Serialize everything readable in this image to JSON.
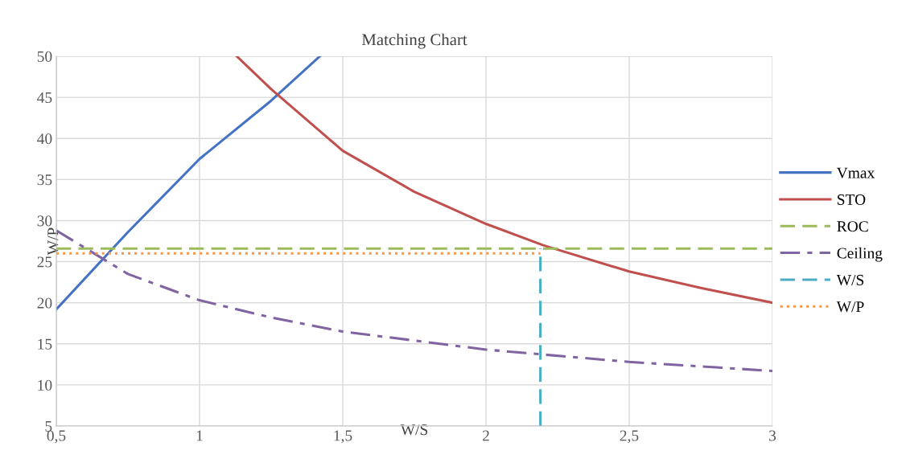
{
  "chart_data": {
    "type": "line",
    "title": "Matching Chart",
    "xlabel": "W/S",
    "ylabel": "W/P",
    "xlim": [
      0.5,
      3
    ],
    "ylim": [
      5,
      50
    ],
    "xticks": [
      {
        "value": 0.5,
        "label": "0,5"
      },
      1,
      {
        "value": 1.5,
        "label": "1,5"
      },
      2,
      {
        "value": 2.5,
        "label": "2,5"
      },
      3
    ],
    "yticks": [
      5,
      10,
      15,
      20,
      25,
      30,
      35,
      40,
      45,
      50
    ],
    "grid": true,
    "legend": "right",
    "series": [
      {
        "name": "Vmax",
        "color": "#4472c4",
        "line_style": "solid",
        "x": [
          0.5,
          0.75,
          1,
          1.25,
          1.42
        ],
        "values": [
          19.2,
          28.6,
          37.5,
          44.6,
          50
        ]
      },
      {
        "name": "STO",
        "color": "#c0504d",
        "line_style": "solid",
        "x": [
          1.13,
          1.25,
          1.5,
          1.75,
          2,
          2.2,
          2.5,
          2.75,
          3
        ],
        "values": [
          50,
          46,
          38.5,
          33.5,
          29.6,
          27,
          23.8,
          21.8,
          20
        ]
      },
      {
        "name": "ROC",
        "color": "#9bbb59",
        "line_style": "dashed",
        "x": [
          0.5,
          3
        ],
        "values": [
          26.6,
          26.6
        ]
      },
      {
        "name": "Ceiling",
        "color": "#8064a2",
        "line_style": "dashdot",
        "x": [
          0.5,
          0.75,
          1,
          1.25,
          1.5,
          2,
          2.2,
          2.5,
          3
        ],
        "values": [
          28.8,
          23.5,
          20.3,
          18.2,
          16.5,
          14.3,
          13.7,
          12.8,
          11.7
        ]
      },
      {
        "name": "W/S",
        "color": "#4bacc6",
        "line_style": "dashed",
        "x": [
          2.19,
          2.19
        ],
        "values": [
          5,
          26.6
        ]
      },
      {
        "name": "W/P",
        "color": "#f79646",
        "line_style": "dotted",
        "x": [
          0.5,
          2.19
        ],
        "values": [
          26,
          26
        ]
      }
    ]
  }
}
